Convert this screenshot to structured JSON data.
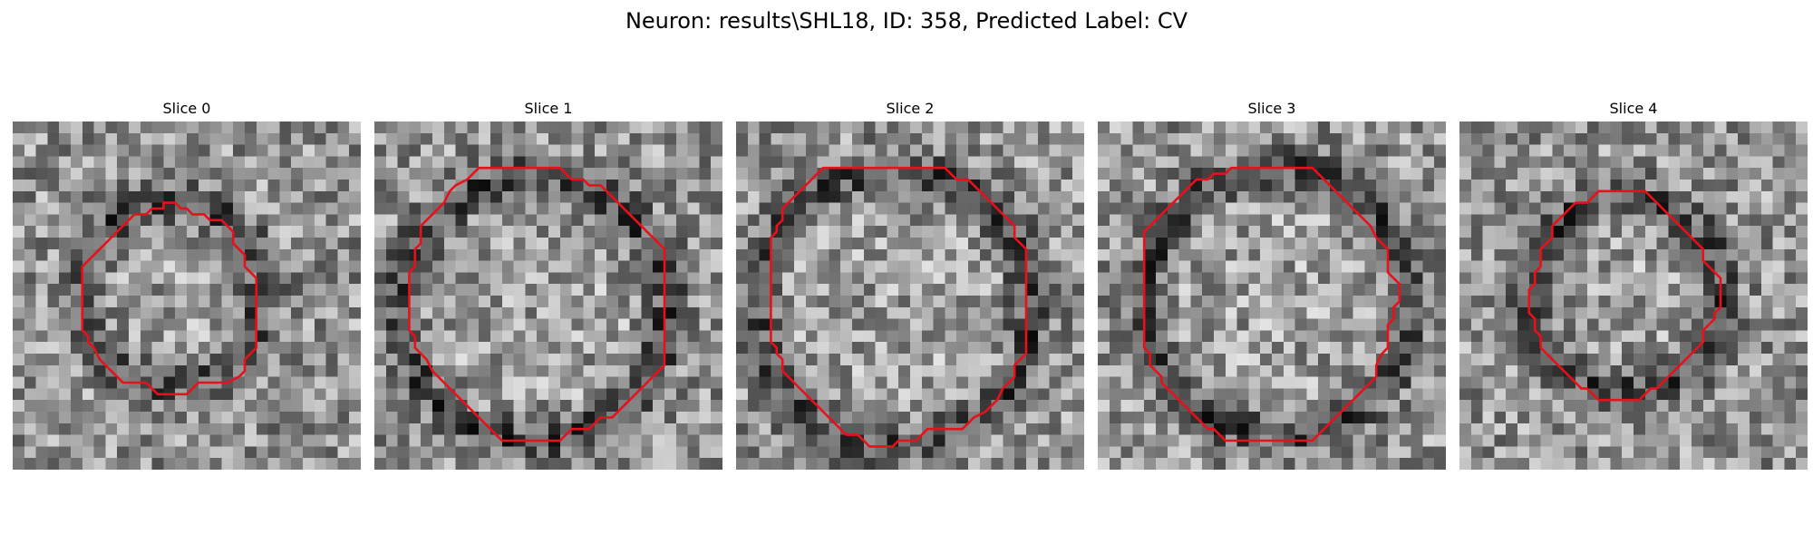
{
  "figure": {
    "title": "Neuron: results\\SHL18, ID: 358, Predicted Label: CV",
    "contour_color": "#e8101a",
    "grayscale_colormap": "gray",
    "panels": [
      {
        "title": "Slice 0",
        "contour": [
          [
            13,
            7
          ],
          [
            14,
            7
          ],
          [
            14.5,
            7.5
          ],
          [
            15,
            7.5
          ],
          [
            15.5,
            8
          ],
          [
            16.5,
            8
          ],
          [
            17,
            8.5
          ],
          [
            18,
            8.5
          ],
          [
            18.5,
            9
          ],
          [
            19,
            9.5
          ],
          [
            19,
            10.5
          ],
          [
            20,
            11.5
          ],
          [
            20,
            12.5
          ],
          [
            21,
            13.5
          ],
          [
            21,
            15.5
          ],
          [
            21,
            16.5
          ],
          [
            21,
            18.5
          ],
          [
            21,
            19.5
          ],
          [
            20.5,
            20
          ],
          [
            20,
            20.5
          ],
          [
            20,
            21.5
          ],
          [
            19.5,
            22
          ],
          [
            18.5,
            22.5
          ],
          [
            16,
            22.5
          ],
          [
            15.5,
            23
          ],
          [
            15,
            23.5
          ],
          [
            12.5,
            23.5
          ],
          [
            12,
            23
          ],
          [
            11.5,
            22.5
          ],
          [
            9.5,
            22.5
          ],
          [
            9,
            22
          ],
          [
            8.5,
            21.5
          ],
          [
            8,
            21
          ],
          [
            7.5,
            20.5
          ],
          [
            7,
            19.5
          ],
          [
            6.5,
            19
          ],
          [
            6.5,
            18.5
          ],
          [
            6,
            18
          ],
          [
            6,
            12.5
          ],
          [
            6.5,
            12
          ],
          [
            7,
            11.5
          ],
          [
            7.5,
            11
          ],
          [
            8,
            10.5
          ],
          [
            8.5,
            10
          ],
          [
            9,
            9.5
          ],
          [
            9.5,
            9
          ],
          [
            10,
            8.5
          ],
          [
            10.5,
            8
          ],
          [
            11.5,
            8
          ],
          [
            12,
            7.5
          ],
          [
            13,
            7.5
          ]
        ]
      },
      {
        "title": "Slice 1",
        "contour": [
          [
            9.5,
            4
          ],
          [
            16,
            4
          ],
          [
            16.5,
            4.5
          ],
          [
            17,
            5
          ],
          [
            18,
            5
          ],
          [
            18.5,
            5.5
          ],
          [
            19.5,
            5.5
          ],
          [
            20,
            6
          ],
          [
            20.5,
            6.5
          ],
          [
            21,
            7
          ],
          [
            21.5,
            7.5
          ],
          [
            22,
            8
          ],
          [
            22.5,
            8.5
          ],
          [
            23,
            9
          ],
          [
            23.5,
            9.5
          ],
          [
            24,
            10
          ],
          [
            24.5,
            10.5
          ],
          [
            25,
            11
          ],
          [
            25,
            16
          ],
          [
            25,
            21
          ],
          [
            24.5,
            21.5
          ],
          [
            24,
            22
          ],
          [
            23.5,
            22.5
          ],
          [
            23,
            23
          ],
          [
            22.5,
            23.5
          ],
          [
            22,
            24
          ],
          [
            21.5,
            24.5
          ],
          [
            21,
            25
          ],
          [
            20.5,
            25.5
          ],
          [
            19.5,
            25.5
          ],
          [
            19,
            26
          ],
          [
            18.5,
            26.5
          ],
          [
            17,
            26.5
          ],
          [
            16.5,
            27
          ],
          [
            16,
            27.5
          ],
          [
            13.5,
            27.5
          ],
          [
            13,
            27.5
          ],
          [
            11,
            27.5
          ],
          [
            10.5,
            27
          ],
          [
            10,
            26.5
          ],
          [
            9.5,
            26
          ],
          [
            9,
            25.5
          ],
          [
            8.5,
            25
          ],
          [
            8,
            24.5
          ],
          [
            7.5,
            24
          ],
          [
            7,
            23.5
          ],
          [
            6.5,
            23
          ],
          [
            6,
            22.5
          ],
          [
            5.5,
            22
          ],
          [
            5,
            21.5
          ],
          [
            4.5,
            20.5
          ],
          [
            4,
            20
          ],
          [
            3.5,
            19.5
          ],
          [
            3.5,
            18.5
          ],
          [
            3,
            18
          ],
          [
            3,
            13
          ],
          [
            3.5,
            12.5
          ],
          [
            3.5,
            11
          ],
          [
            4,
            10.5
          ],
          [
            4,
            9
          ],
          [
            4.5,
            8.5
          ],
          [
            5,
            8
          ],
          [
            5.5,
            7.5
          ],
          [
            6,
            7
          ],
          [
            6.5,
            6
          ],
          [
            7,
            5.5
          ],
          [
            8,
            5
          ],
          [
            8.5,
            4.5
          ],
          [
            9,
            4
          ]
        ]
      },
      {
        "title": "Slice 2",
        "contour": [
          [
            7.5,
            4
          ],
          [
            14.5,
            4
          ],
          [
            15,
            4
          ],
          [
            18,
            4
          ],
          [
            18.5,
            4.5
          ],
          [
            19,
            5
          ],
          [
            20,
            5
          ],
          [
            20.5,
            5.5
          ],
          [
            21,
            6
          ],
          [
            21.5,
            6.5
          ],
          [
            22,
            7
          ],
          [
            22.5,
            7.5
          ],
          [
            23,
            8
          ],
          [
            23.5,
            8.5
          ],
          [
            24,
            9
          ],
          [
            24,
            10
          ],
          [
            24.5,
            10.5
          ],
          [
            25,
            11
          ],
          [
            25,
            20
          ],
          [
            24.5,
            20.5
          ],
          [
            24,
            21
          ],
          [
            24,
            22
          ],
          [
            23.5,
            22.5
          ],
          [
            23,
            23
          ],
          [
            22.5,
            24
          ],
          [
            22,
            24.5
          ],
          [
            21.5,
            25
          ],
          [
            20.5,
            25.5
          ],
          [
            20,
            26
          ],
          [
            19.5,
            26.5
          ],
          [
            16.5,
            26.5
          ],
          [
            16,
            27
          ],
          [
            15.5,
            27.5
          ],
          [
            14,
            27.5
          ],
          [
            13.5,
            28
          ],
          [
            11.5,
            28
          ],
          [
            11,
            27.5
          ],
          [
            10.5,
            27
          ],
          [
            9.5,
            27
          ],
          [
            9,
            26.5
          ],
          [
            8.5,
            26
          ],
          [
            8,
            25.5
          ],
          [
            7.5,
            25
          ],
          [
            7,
            24.5
          ],
          [
            6.5,
            24
          ],
          [
            6,
            23.5
          ],
          [
            5.5,
            23
          ],
          [
            5,
            22.5
          ],
          [
            4.5,
            22
          ],
          [
            4,
            21.5
          ],
          [
            4,
            20.5
          ],
          [
            3.5,
            20
          ],
          [
            3.5,
            19.5
          ],
          [
            3,
            19
          ],
          [
            3,
            10
          ],
          [
            3.5,
            9.5
          ],
          [
            3.5,
            9
          ],
          [
            4,
            8.5
          ],
          [
            4,
            7.5
          ],
          [
            4.5,
            7
          ],
          [
            5,
            6.5
          ],
          [
            5.5,
            6
          ],
          [
            6,
            5.5
          ],
          [
            6.5,
            5
          ],
          [
            7,
            4.5
          ],
          [
            7.5,
            4
          ]
        ]
      },
      {
        "title": "Slice 3",
        "contour": [
          [
            12.5,
            4
          ],
          [
            18.5,
            4
          ],
          [
            19,
            4.5
          ],
          [
            19.5,
            5
          ],
          [
            20,
            5.5
          ],
          [
            20.5,
            6
          ],
          [
            21,
            6.5
          ],
          [
            21.5,
            7
          ],
          [
            22,
            7.5
          ],
          [
            22.5,
            8
          ],
          [
            23,
            8.5
          ],
          [
            23.5,
            9
          ],
          [
            24,
            10
          ],
          [
            24.5,
            10.5
          ],
          [
            25,
            11
          ],
          [
            25,
            13
          ],
          [
            25.5,
            13.5
          ],
          [
            26,
            14
          ],
          [
            26,
            15
          ],
          [
            26,
            15.5
          ],
          [
            25.5,
            16
          ],
          [
            25.5,
            17
          ],
          [
            25,
            17.5
          ],
          [
            25,
            19.5
          ],
          [
            24.5,
            20
          ],
          [
            24,
            21
          ],
          [
            24,
            22
          ],
          [
            23.5,
            22.5
          ],
          [
            23,
            23
          ],
          [
            22.5,
            23.5
          ],
          [
            22,
            24
          ],
          [
            21.5,
            24.5
          ],
          [
            21,
            25
          ],
          [
            20.5,
            25.5
          ],
          [
            20,
            26
          ],
          [
            19.5,
            26.5
          ],
          [
            19,
            27
          ],
          [
            18.5,
            27.5
          ],
          [
            11,
            27.5
          ],
          [
            10.5,
            27
          ],
          [
            10,
            26.5
          ],
          [
            9.5,
            26.5
          ],
          [
            9,
            26
          ],
          [
            8.5,
            25.5
          ],
          [
            8,
            25
          ],
          [
            7.5,
            24.5
          ],
          [
            7,
            24
          ],
          [
            6.5,
            23.5
          ],
          [
            6,
            23
          ],
          [
            5.5,
            22.5
          ],
          [
            5.5,
            22
          ],
          [
            5,
            21.5
          ],
          [
            4.5,
            21
          ],
          [
            4.5,
            20
          ],
          [
            4,
            19.5
          ],
          [
            4,
            9.5
          ],
          [
            4.5,
            9
          ],
          [
            5,
            8.5
          ],
          [
            5.5,
            8
          ],
          [
            6,
            7.5
          ],
          [
            6.5,
            7
          ],
          [
            7,
            6.5
          ],
          [
            7.5,
            6
          ],
          [
            8,
            5.5
          ],
          [
            8.5,
            5
          ],
          [
            9.5,
            5
          ],
          [
            10,
            4.5
          ],
          [
            11,
            4.5
          ],
          [
            11.5,
            4
          ],
          [
            12.5,
            4
          ]
        ]
      },
      {
        "title": "Slice 4",
        "contour": [
          [
            13,
            6
          ],
          [
            16,
            6
          ],
          [
            16.5,
            6.5
          ],
          [
            17,
            7
          ],
          [
            17.5,
            7.5
          ],
          [
            18,
            8
          ],
          [
            18.5,
            8.5
          ],
          [
            19,
            9
          ],
          [
            19.5,
            9.5
          ],
          [
            20,
            10
          ],
          [
            20.5,
            10.5
          ],
          [
            21,
            11
          ],
          [
            21,
            12
          ],
          [
            21.5,
            12.5
          ],
          [
            22,
            13
          ],
          [
            22.5,
            13.5
          ],
          [
            22.5,
            15
          ],
          [
            22.5,
            16
          ],
          [
            22,
            16.5
          ],
          [
            22,
            17
          ],
          [
            21.5,
            17.5
          ],
          [
            21,
            18
          ],
          [
            21,
            19
          ],
          [
            20.5,
            19.5
          ],
          [
            20,
            20
          ],
          [
            19.5,
            20.5
          ],
          [
            19,
            21
          ],
          [
            18.5,
            21.5
          ],
          [
            18,
            22
          ],
          [
            17.5,
            22.5
          ],
          [
            17,
            23
          ],
          [
            16.5,
            23
          ],
          [
            16,
            23.5
          ],
          [
            15.5,
            24
          ],
          [
            12,
            24
          ],
          [
            11.5,
            23.5
          ],
          [
            11,
            23
          ],
          [
            10.5,
            23
          ],
          [
            10,
            22.5
          ],
          [
            9.5,
            22
          ],
          [
            9,
            21.5
          ],
          [
            8.5,
            21
          ],
          [
            8,
            20.5
          ],
          [
            7.5,
            20
          ],
          [
            7,
            19.5
          ],
          [
            7,
            18.5
          ],
          [
            6.5,
            18
          ],
          [
            6.5,
            17
          ],
          [
            6,
            16.5
          ],
          [
            6,
            14.5
          ],
          [
            6.5,
            14
          ],
          [
            6.5,
            13
          ],
          [
            7,
            12.5
          ],
          [
            7,
            11
          ],
          [
            7.5,
            10.5
          ],
          [
            8,
            10
          ],
          [
            8,
            9
          ],
          [
            8.5,
            8.5
          ],
          [
            9,
            8
          ],
          [
            9.5,
            7.5
          ],
          [
            10,
            7
          ],
          [
            11,
            7
          ],
          [
            11.5,
            6.5
          ],
          [
            12,
            6
          ],
          [
            13,
            6
          ]
        ]
      }
    ]
  }
}
